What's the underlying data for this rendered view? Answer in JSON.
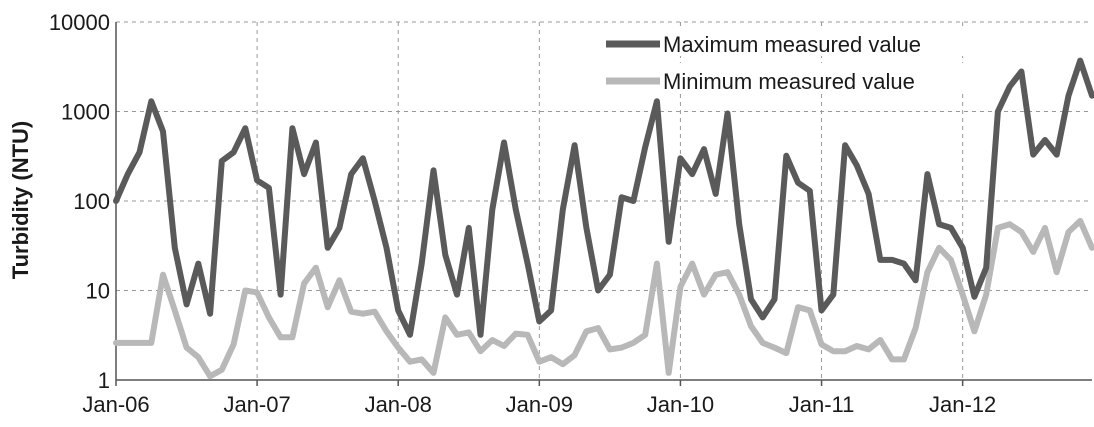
{
  "chart_data": {
    "type": "line",
    "title": "",
    "xlabel": "",
    "ylabel": "Turbidity (NTU)",
    "yscale": "log",
    "ylim": [
      1,
      10000
    ],
    "yticks": [
      1,
      10,
      100,
      1000,
      10000
    ],
    "ytick_labels": [
      "1",
      "10",
      "100",
      "1000",
      "10000"
    ],
    "xlim": [
      "Jan-06",
      "Dec-12"
    ],
    "xtick_labels": [
      "Jan-06",
      "Jan-07",
      "Jan-08",
      "Jan-09",
      "Jan-10",
      "Jan-11",
      "Jan-12"
    ],
    "grid": true,
    "legend_position": "top-right",
    "x": [
      "Jan-06",
      "Feb-06",
      "Mar-06",
      "Apr-06",
      "May-06",
      "Jun-06",
      "Jul-06",
      "Aug-06",
      "Sep-06",
      "Oct-06",
      "Nov-06",
      "Dec-06",
      "Jan-07",
      "Feb-07",
      "Mar-07",
      "Apr-07",
      "May-07",
      "Jun-07",
      "Jul-07",
      "Aug-07",
      "Sep-07",
      "Oct-07",
      "Nov-07",
      "Dec-07",
      "Jan-08",
      "Feb-08",
      "Mar-08",
      "Apr-08",
      "May-08",
      "Jun-08",
      "Jul-08",
      "Aug-08",
      "Sep-08",
      "Oct-08",
      "Nov-08",
      "Dec-08",
      "Jan-09",
      "Feb-09",
      "Mar-09",
      "Apr-09",
      "May-09",
      "Jun-09",
      "Jul-09",
      "Aug-09",
      "Sep-09",
      "Oct-09",
      "Nov-09",
      "Dec-09",
      "Jan-10",
      "Feb-10",
      "Mar-10",
      "Apr-10",
      "May-10",
      "Jun-10",
      "Jul-10",
      "Aug-10",
      "Sep-10",
      "Oct-10",
      "Nov-10",
      "Dec-10",
      "Jan-11",
      "Feb-11",
      "Mar-11",
      "Apr-11",
      "May-11",
      "Jun-11",
      "Jul-11",
      "Aug-11",
      "Sep-11",
      "Oct-11",
      "Nov-11",
      "Dec-11",
      "Jan-12",
      "Feb-12",
      "Mar-12",
      "Apr-12",
      "May-12",
      "Jun-12",
      "Jul-12",
      "Aug-12",
      "Sep-12",
      "Oct-12",
      "Nov-12",
      "Dec-12"
    ],
    "series": [
      {
        "name": "Maximum measured value",
        "color": "#5a5a5a",
        "values": [
          100,
          200,
          350,
          1300,
          600,
          30,
          7,
          20,
          5.5,
          280,
          350,
          650,
          170,
          140,
          9,
          650,
          200,
          450,
          30,
          50,
          200,
          300,
          100,
          30,
          6,
          3.2,
          20,
          220,
          25,
          9,
          50,
          3.2,
          80,
          450,
          80,
          20,
          4.5,
          6,
          80,
          420,
          50,
          10,
          15,
          110,
          100,
          400,
          1300,
          35,
          300,
          200,
          380,
          120,
          950,
          55,
          8,
          5,
          8,
          320,
          160,
          130,
          6,
          9,
          420,
          250,
          120,
          22,
          22,
          20,
          13,
          200,
          55,
          50,
          30,
          8.5,
          18,
          1000,
          1900,
          2800,
          330,
          480,
          330,
          1500,
          3700,
          1500
        ]
      },
      {
        "name": "Minimum measured value",
        "color": "#b8b8b8",
        "values": [
          2.6,
          2.6,
          2.6,
          2.6,
          15,
          6,
          2.3,
          1.8,
          1.1,
          1.3,
          2.5,
          10,
          9.5,
          5,
          3,
          3,
          12,
          18,
          6.5,
          13,
          5.8,
          5.5,
          5.8,
          3.5,
          2.3,
          1.6,
          1.7,
          1.2,
          5,
          3.2,
          3.4,
          2.1,
          2.8,
          2.4,
          3.3,
          3.2,
          1.6,
          1.8,
          1.5,
          1.9,
          3.5,
          3.8,
          2.2,
          2.3,
          2.6,
          3.2,
          20,
          1.2,
          11,
          20,
          9,
          15,
          16,
          9,
          4,
          2.6,
          2.3,
          2,
          6.5,
          6,
          2.5,
          2.1,
          2.1,
          2.4,
          2.2,
          2.8,
          1.7,
          1.7,
          3.8,
          16,
          30,
          22,
          9,
          3.5,
          9,
          50,
          55,
          45,
          27,
          50,
          16,
          45,
          60,
          30
        ]
      }
    ]
  }
}
